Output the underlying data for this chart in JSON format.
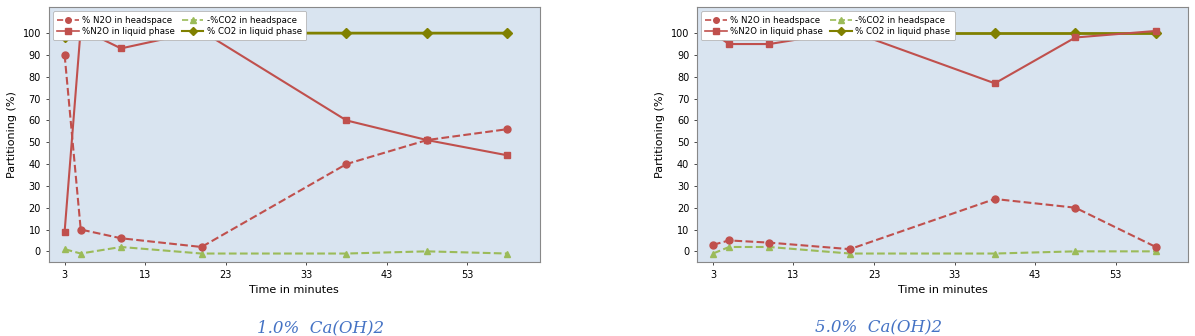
{
  "chart1": {
    "title": "1.0%  Ca(OH)2",
    "x": [
      3,
      5,
      10,
      20,
      38,
      48,
      58
    ],
    "n2o_headspace": [
      90,
      10,
      6,
      2,
      40,
      51,
      56
    ],
    "n2o_liquid": [
      9,
      102,
      93,
      101,
      60,
      51,
      44
    ],
    "co2_headspace": [
      1,
      -1,
      2,
      -1,
      -1,
      0,
      -1
    ],
    "co2_liquid": [
      98,
      100,
      100,
      100,
      100,
      100,
      100
    ]
  },
  "chart2": {
    "title": "5.0%  Ca(OH)2",
    "x": [
      3,
      5,
      10,
      20,
      38,
      48,
      58
    ],
    "n2o_headspace": [
      3,
      5,
      4,
      1,
      24,
      20,
      2
    ],
    "n2o_liquid": [
      100,
      95,
      95,
      101,
      77,
      98,
      101
    ],
    "co2_headspace": [
      -1,
      2,
      2,
      -1,
      -1,
      0,
      0
    ],
    "co2_liquid": [
      100,
      100,
      100,
      100,
      100,
      100,
      100
    ]
  },
  "colors": {
    "n2o_headspace": "#C0504D",
    "n2o_liquid": "#C0504D",
    "co2_headspace": "#9BBB59",
    "co2_liquid": "#808000"
  },
  "xlabel": "Time in minutes",
  "ylabel": "Partitioning (%)",
  "xticks": [
    3,
    13,
    23,
    33,
    43,
    53
  ],
  "yticks": [
    0,
    10,
    20,
    30,
    40,
    50,
    60,
    70,
    80,
    90,
    100
  ],
  "ylim": [
    -5,
    112
  ],
  "xlim": [
    1,
    62
  ],
  "legend_labels": [
    "% N2O in headspace",
    "%N2O in liquid phase",
    "-%CO2 in headspace",
    "% CO2 in liquid phase"
  ],
  "bg_color": "#D9E4F0",
  "title_color": "#4472C4"
}
